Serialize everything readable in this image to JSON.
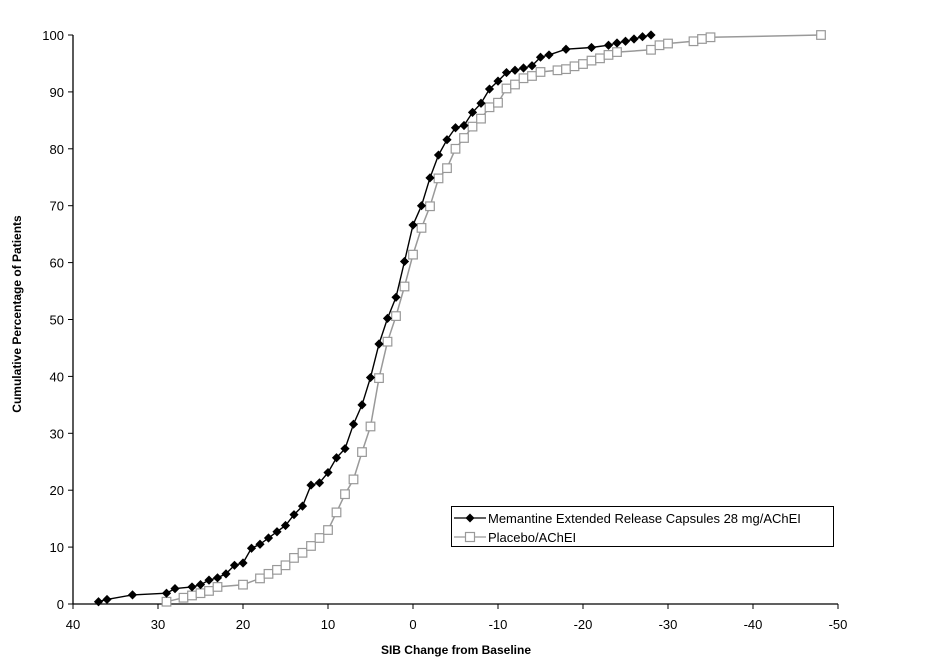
{
  "chart_data": {
    "type": "line",
    "title": "",
    "xlabel": "SIB Change from Baseline",
    "ylabel": "Cumulative Percentage of Patients",
    "xlim": [
      40,
      -50
    ],
    "ylim": [
      0,
      100
    ],
    "x_reversed": true,
    "xticks": [
      40,
      30,
      20,
      10,
      0,
      -10,
      -20,
      -30,
      -40,
      -50
    ],
    "yticks": [
      0,
      10,
      20,
      30,
      40,
      50,
      60,
      70,
      80,
      90,
      100
    ],
    "grid": false,
    "legend_position": "lower right (inside plot)",
    "series": [
      {
        "name": "Memantine Extended Release Capsules 28 mg/AChEI",
        "color": "#000000",
        "marker": "filled-diamond",
        "points": [
          [
            37,
            0.4
          ],
          [
            36,
            0.8
          ],
          [
            33,
            1.6
          ],
          [
            29,
            1.9
          ],
          [
            28,
            2.7
          ],
          [
            26,
            3.0
          ],
          [
            25,
            3.4
          ],
          [
            24,
            4.2
          ],
          [
            23,
            4.6
          ],
          [
            22,
            5.3
          ],
          [
            21,
            6.8
          ],
          [
            20,
            7.2
          ],
          [
            19,
            9.8
          ],
          [
            18,
            10.5
          ],
          [
            17,
            11.6
          ],
          [
            16,
            12.7
          ],
          [
            15,
            13.8
          ],
          [
            14,
            15.7
          ],
          [
            13,
            17.2
          ],
          [
            12,
            20.9
          ],
          [
            11,
            21.3
          ],
          [
            10,
            23.1
          ],
          [
            9,
            25.7
          ],
          [
            8,
            27.3
          ],
          [
            7,
            31.6
          ],
          [
            6,
            35.0
          ],
          [
            5,
            39.8
          ],
          [
            4,
            45.7
          ],
          [
            3,
            50.2
          ],
          [
            2,
            53.9
          ],
          [
            1,
            60.2
          ],
          [
            0,
            66.6
          ],
          [
            -1,
            70.0
          ],
          [
            -2,
            74.9
          ],
          [
            -3,
            78.9
          ],
          [
            -4,
            81.6
          ],
          [
            -5,
            83.7
          ],
          [
            -6,
            84.1
          ],
          [
            -7,
            86.4
          ],
          [
            -8,
            88.0
          ],
          [
            -9,
            90.5
          ],
          [
            -10,
            91.9
          ],
          [
            -11,
            93.4
          ],
          [
            -12,
            93.8
          ],
          [
            -13,
            94.2
          ],
          [
            -14,
            94.6
          ],
          [
            -15,
            96.1
          ],
          [
            -16,
            96.5
          ],
          [
            -18,
            97.5
          ],
          [
            -21,
            97.8
          ],
          [
            -23,
            98.2
          ],
          [
            -24,
            98.6
          ],
          [
            -25,
            98.9
          ],
          [
            -26,
            99.3
          ],
          [
            -27,
            99.7
          ],
          [
            -28,
            100.0
          ]
        ]
      },
      {
        "name": "Placebo/AChEI",
        "color": "#999999",
        "marker": "open-square",
        "points": [
          [
            29,
            0.4
          ],
          [
            27,
            1.1
          ],
          [
            26,
            1.5
          ],
          [
            25,
            1.9
          ],
          [
            24,
            2.3
          ],
          [
            23,
            3.0
          ],
          [
            20,
            3.4
          ],
          [
            18,
            4.5
          ],
          [
            17,
            5.3
          ],
          [
            16,
            6.0
          ],
          [
            15,
            6.8
          ],
          [
            14,
            8.1
          ],
          [
            13,
            9.0
          ],
          [
            12,
            10.2
          ],
          [
            11,
            11.6
          ],
          [
            10,
            13.0
          ],
          [
            9,
            16.1
          ],
          [
            8,
            19.3
          ],
          [
            7,
            21.9
          ],
          [
            6,
            26.7
          ],
          [
            5,
            31.2
          ],
          [
            4,
            39.7
          ],
          [
            3,
            46.1
          ],
          [
            2,
            50.6
          ],
          [
            1,
            55.8
          ],
          [
            0,
            61.4
          ],
          [
            -1,
            66.1
          ],
          [
            -2,
            69.9
          ],
          [
            -3,
            74.8
          ],
          [
            -4,
            76.6
          ],
          [
            -5,
            80.0
          ],
          [
            -6,
            81.9
          ],
          [
            -7,
            83.9
          ],
          [
            -8,
            85.3
          ],
          [
            -9,
            87.3
          ],
          [
            -10,
            88.1
          ],
          [
            -11,
            90.6
          ],
          [
            -12,
            91.3
          ],
          [
            -13,
            92.4
          ],
          [
            -14,
            92.8
          ],
          [
            -15,
            93.5
          ],
          [
            -17,
            93.8
          ],
          [
            -18,
            94.0
          ],
          [
            -19,
            94.5
          ],
          [
            -20,
            94.9
          ],
          [
            -21,
            95.5
          ],
          [
            -22,
            95.9
          ],
          [
            -23,
            96.5
          ],
          [
            -24,
            97.0
          ],
          [
            -28,
            97.4
          ],
          [
            -29,
            98.2
          ],
          [
            -30,
            98.5
          ],
          [
            -33,
            98.9
          ],
          [
            -34,
            99.3
          ],
          [
            -35,
            99.6
          ],
          [
            -48,
            100.0
          ]
        ]
      }
    ]
  },
  "legend": {
    "items": [
      {
        "label": "Memantine Extended Release Capsules 28 mg/AChEI"
      },
      {
        "label": "Placebo/AChEI"
      }
    ]
  }
}
